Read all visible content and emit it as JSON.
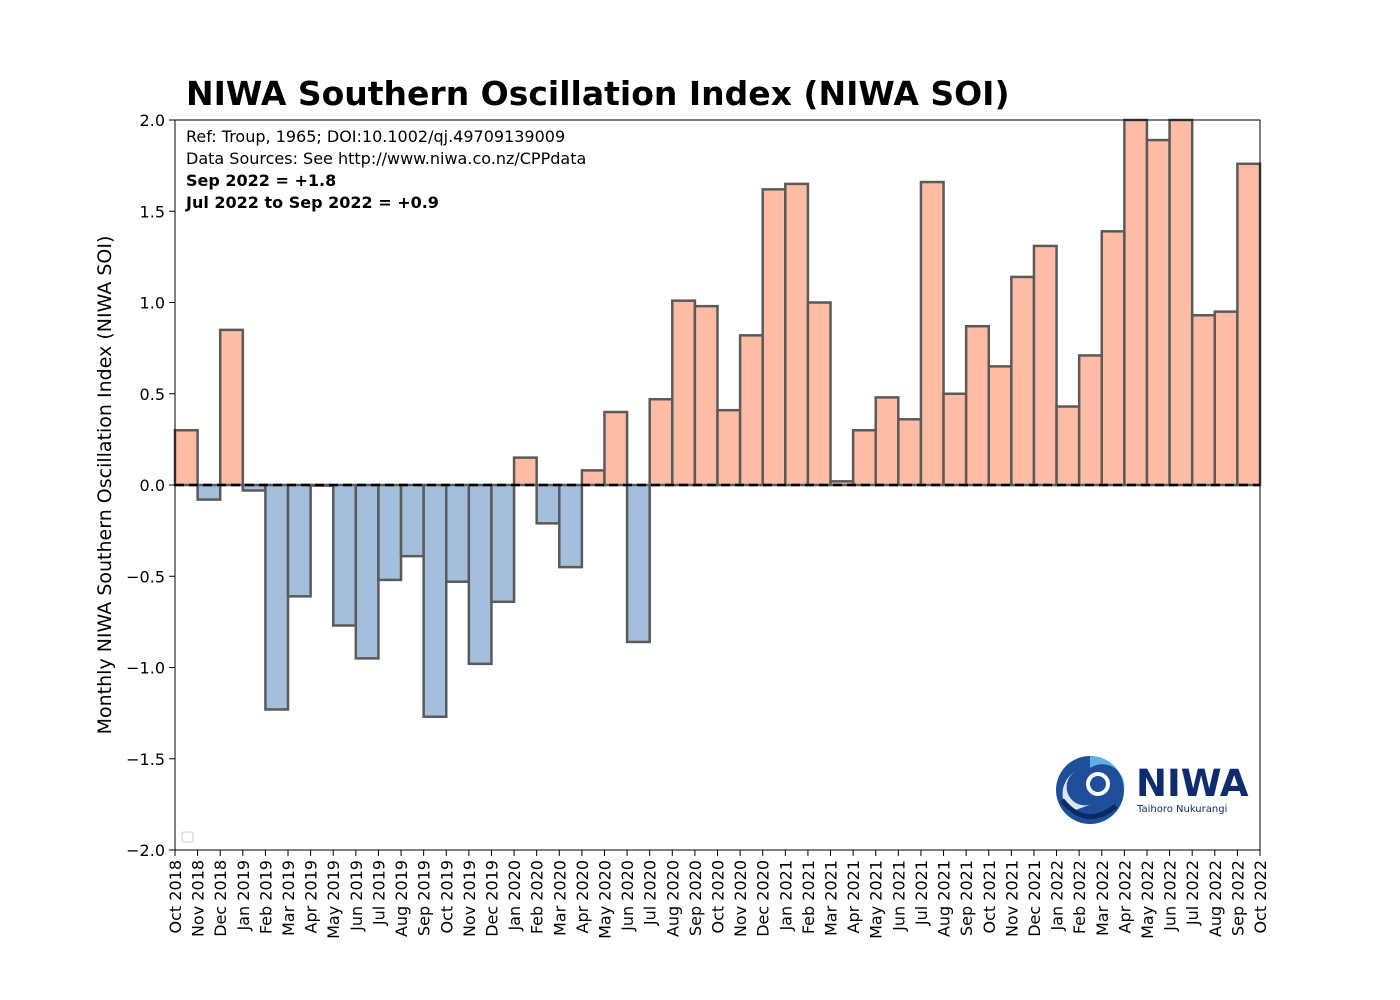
{
  "chart_data": {
    "type": "bar",
    "title": "NIWA Southern Oscillation Index (NIWA SOI)",
    "ylabel": "Monthly NIWA Southern Oscillation Index (NIWA SOI)",
    "xlabel": "",
    "ylim": [
      -2.0,
      2.0
    ],
    "yticks": [
      "2.0",
      "1.5",
      "1.0",
      "0.5",
      "0.0",
      "−0.5",
      "−1.0",
      "−1.5",
      "−2.0"
    ],
    "annotations": [
      "Ref: Troup, 1965; DOI:10.1002/qj.49709139009",
      "Data Sources: See http://www.niwa.co.nz/CPPdata",
      "Sep 2022 = +1.8",
      "Jul 2022 to Sep 2022 = +0.9"
    ],
    "categories": [
      "Oct 2018",
      "Nov 2018",
      "Dec 2018",
      "Jan 2019",
      "Feb 2019",
      "Mar 2019",
      "Apr 2019",
      "May 2019",
      "Jun 2019",
      "Jul 2019",
      "Aug 2019",
      "Sep 2019",
      "Oct 2019",
      "Nov 2019",
      "Dec 2019",
      "Jan 2020",
      "Feb 2020",
      "Mar 2020",
      "Apr 2020",
      "May 2020",
      "Jun 2020",
      "Jul 2020",
      "Aug 2020",
      "Sep 2020",
      "Oct 2020",
      "Nov 2020",
      "Dec 2020",
      "Jan 2021",
      "Feb 2021",
      "Mar 2021",
      "Apr 2021",
      "May 2021",
      "Jun 2021",
      "Jul 2021",
      "Aug 2021",
      "Sep 2021",
      "Oct 2021",
      "Nov 2021",
      "Dec 2021",
      "Jan 2022",
      "Feb 2022",
      "Mar 2022",
      "Apr 2022",
      "May 2022",
      "Jun 2022",
      "Jul 2022",
      "Aug 2022",
      "Sep 2022",
      "Oct 2022"
    ],
    "values": [
      0.3,
      -0.08,
      0.85,
      -0.03,
      -1.23,
      -0.61,
      0.0,
      -0.77,
      -0.95,
      -0.52,
      -0.39,
      -1.27,
      -0.53,
      -0.98,
      -0.64,
      0.15,
      -0.21,
      -0.45,
      0.08,
      0.4,
      -0.86,
      0.47,
      1.01,
      0.98,
      0.41,
      0.82,
      1.62,
      1.65,
      1.0,
      0.02,
      0.3,
      0.48,
      0.36,
      1.66,
      0.5,
      0.87,
      0.65,
      1.14,
      1.31,
      0.43,
      0.71,
      1.39,
      2.0,
      1.89,
      2.0,
      0.93,
      0.95,
      1.76,
      null
    ],
    "positive_color": "#ffbca5",
    "negative_color": "#a3bfdb",
    "edge_color": "#5a5a5a",
    "zero_line": "dashed",
    "grid": false
  },
  "logo": {
    "name": "NIWA",
    "tagline": "Taihoro Nukurangi",
    "color": "#0f2d6e"
  }
}
